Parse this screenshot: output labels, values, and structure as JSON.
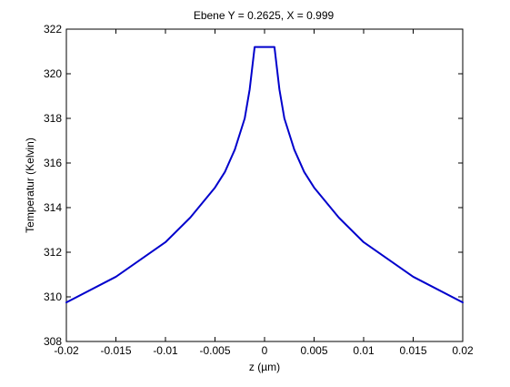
{
  "chart_data": {
    "type": "line",
    "title": "Ebene Y = 0.2625, X = 0.999",
    "xlabel": "z (µm)",
    "ylabel": "Temperatur (Kelvin)",
    "xlim": [
      -0.02,
      0.02
    ],
    "ylim": [
      308,
      322
    ],
    "xticks": [
      -0.02,
      -0.015,
      -0.01,
      -0.005,
      0,
      0.005,
      0.01,
      0.015,
      0.02
    ],
    "xtick_labels": [
      "-0.02",
      "-0.015",
      "-0.01",
      "-0.005",
      "0",
      "0.005",
      "0.01",
      "0.015",
      "0.02"
    ],
    "yticks": [
      308,
      310,
      312,
      314,
      316,
      318,
      320,
      322
    ],
    "ytick_labels": [
      "308",
      "310",
      "312",
      "314",
      "316",
      "318",
      "320",
      "322"
    ],
    "grid": false,
    "series": [
      {
        "color": "#0000cc",
        "x": [
          -0.02,
          -0.015,
          -0.01,
          -0.0075,
          -0.005,
          -0.004,
          -0.003,
          -0.002,
          -0.0015,
          -0.001,
          0.001,
          0.0015,
          0.002,
          0.003,
          0.004,
          0.005,
          0.0075,
          0.01,
          0.015,
          0.02
        ],
        "y": [
          309.75,
          310.9,
          312.45,
          313.55,
          314.9,
          315.6,
          316.6,
          318.0,
          319.3,
          321.2,
          321.2,
          319.3,
          318.0,
          316.6,
          315.6,
          314.9,
          313.55,
          312.45,
          310.9,
          309.75
        ]
      }
    ]
  }
}
